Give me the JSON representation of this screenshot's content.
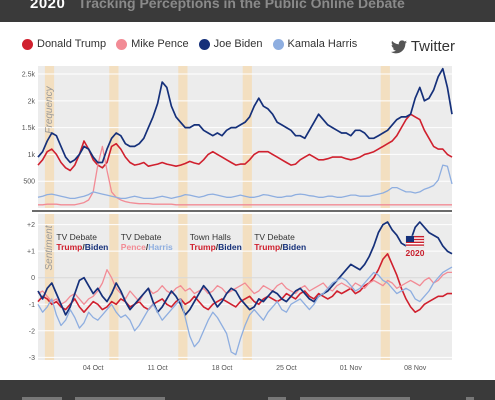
{
  "header": {
    "year": "2020",
    "title": "Tracking Perceptions in the Public Online Debate"
  },
  "legend": [
    {
      "name": "Donald Trump",
      "color": "#d0202e"
    },
    {
      "name": "Mike Pence",
      "color": "#f28b95"
    },
    {
      "name": "Joe Biden",
      "color": "#15307a"
    },
    {
      "name": "Kamala Harris",
      "color": "#8eaee0"
    }
  ],
  "platform": {
    "label": "Twitter",
    "icon": "twitter-bird-icon"
  },
  "colors": {
    "event_band": "#f3dfc0",
    "pane_bg": "#ececec",
    "divider": "#3a3a3a"
  },
  "chart_data": [
    {
      "type": "line",
      "ylabel": "Frequency",
      "yticks": [
        "500",
        "1k",
        "1.5k",
        "2k",
        "2.5k"
      ],
      "ytick_values": [
        500,
        1000,
        1500,
        2000,
        2500
      ],
      "ylim": [
        0,
        2650
      ],
      "x": [
        0,
        1,
        2,
        3,
        4,
        5,
        6,
        7,
        8,
        9,
        10,
        11,
        12,
        13,
        14,
        15,
        16,
        17,
        18,
        19,
        20,
        21,
        22,
        23,
        24,
        25,
        26,
        27,
        28,
        29,
        30,
        31,
        32,
        33,
        34,
        35,
        36,
        37,
        38,
        39,
        40,
        41,
        42,
        43,
        44,
        45,
        46,
        47,
        48,
        49,
        50,
        51,
        52,
        53,
        54,
        55,
        56,
        57,
        58,
        59,
        60,
        61,
        62,
        63,
        64,
        65,
        66,
        67,
        68,
        69,
        70,
        71,
        72,
        73,
        74,
        75,
        76,
        77,
        78,
        79,
        80,
        81,
        82,
        83,
        84,
        85,
        86,
        87,
        88,
        89,
        90
      ],
      "series": [
        {
          "name": "Donald Trump",
          "values": [
            800,
            900,
            1050,
            1100,
            1000,
            850,
            750,
            700,
            800,
            1000,
            1250,
            1100,
            900,
            800,
            750,
            850,
            1150,
            1200,
            1100,
            950,
            850,
            800,
            820,
            850,
            780,
            800,
            820,
            850,
            820,
            800,
            780,
            800,
            830,
            870,
            840,
            820,
            900,
            1000,
            1050,
            1000,
            950,
            900,
            850,
            800,
            820,
            820,
            900,
            1000,
            1050,
            1050,
            1050,
            1000,
            950,
            900,
            850,
            800,
            820,
            900,
            950,
            1000,
            950,
            900,
            900,
            920,
            950,
            950,
            950,
            920,
            900,
            920,
            950,
            1000,
            1020,
            1050,
            1100,
            1150,
            1200,
            1250,
            1350,
            1500,
            1650,
            1750,
            1700,
            1650,
            1450,
            1300,
            1150,
            1100,
            1100,
            1000,
            950
          ]
        },
        {
          "name": "Mike Pence",
          "values": [
            60,
            60,
            70,
            70,
            70,
            60,
            60,
            60,
            60,
            80,
            100,
            150,
            300,
            800,
            1150,
            700,
            300,
            200,
            150,
            120,
            100,
            90,
            80,
            80,
            80,
            70,
            70,
            70,
            70,
            70,
            60,
            60,
            60,
            60,
            60,
            60,
            60,
            60,
            60,
            60,
            60,
            60,
            60,
            60,
            60,
            60,
            60,
            60,
            60,
            60,
            60,
            60,
            60,
            60,
            60,
            60,
            60,
            60,
            60,
            60,
            60,
            60,
            60,
            60,
            60,
            60,
            60,
            60,
            60,
            60,
            60,
            60,
            60,
            60,
            60,
            60,
            60,
            60,
            60,
            60,
            60,
            60,
            60,
            60,
            60,
            60,
            60,
            60,
            60,
            60,
            60
          ]
        },
        {
          "name": "Joe Biden",
          "values": [
            950,
            1050,
            1250,
            1400,
            1350,
            1150,
            950,
            850,
            900,
            1000,
            1150,
            1100,
            950,
            850,
            850,
            1100,
            1300,
            1400,
            1350,
            1200,
            1150,
            1150,
            1200,
            1300,
            1500,
            1700,
            1950,
            2350,
            2250,
            1900,
            1700,
            1600,
            1500,
            1500,
            1550,
            1550,
            1450,
            1400,
            1350,
            1400,
            1350,
            1450,
            1500,
            1500,
            1550,
            1600,
            1700,
            1900,
            2050,
            1900,
            1850,
            1750,
            1600,
            1550,
            1500,
            1450,
            1350,
            1350,
            1300,
            1450,
            1600,
            1750,
            1650,
            1550,
            1500,
            1450,
            1400,
            1400,
            1350,
            1450,
            1450,
            1400,
            1300,
            1300,
            1350,
            1400,
            1450,
            1550,
            1650,
            1700,
            1700,
            1750,
            2050,
            2250,
            2000,
            2050,
            2200,
            2450,
            2600,
            2250,
            1750
          ]
        },
        {
          "name": "Kamala Harris",
          "values": [
            200,
            220,
            250,
            260,
            240,
            220,
            200,
            180,
            180,
            200,
            220,
            250,
            300,
            280,
            260,
            240,
            220,
            200,
            180,
            180,
            200,
            220,
            200,
            180,
            180,
            180,
            200,
            220,
            200,
            180,
            200,
            220,
            250,
            240,
            220,
            200,
            220,
            250,
            260,
            240,
            220,
            200,
            200,
            220,
            240,
            220,
            200,
            200,
            220,
            250,
            240,
            220,
            200,
            200,
            220,
            220,
            250,
            260,
            250,
            230,
            220,
            200,
            200,
            220,
            220,
            200,
            200,
            220,
            240,
            240,
            220,
            220,
            220,
            240,
            260,
            280,
            320,
            380,
            380,
            340,
            300,
            300,
            280,
            300,
            350,
            380,
            420,
            520,
            800,
            780,
            450
          ]
        }
      ]
    },
    {
      "type": "line",
      "ylabel": "Sentiment",
      "yticks": [
        "+2",
        "+1",
        "0",
        "-1",
        "-2",
        "-3"
      ],
      "ytick_values": [
        2,
        1,
        0,
        -1,
        -2,
        -3
      ],
      "ylim": [
        -3.1,
        2.4
      ],
      "xticks": [
        "04 Oct",
        "11 Oct",
        "18 Oct",
        "25 Oct",
        "01 Nov",
        "08 Nov"
      ],
      "xtick_positions": [
        12,
        26,
        40,
        54,
        68,
        82
      ],
      "event_bands": [
        [
          1.5,
          3.5
        ],
        [
          15.5,
          17.5
        ],
        [
          30.5,
          32.5
        ],
        [
          44.5,
          46.5
        ],
        [
          74.5,
          76.5
        ]
      ],
      "annotations": [
        {
          "title": "TV Debate",
          "a": "Trump",
          "b": "Biden",
          "x": 4
        },
        {
          "title": "TV Debate",
          "a": "Pence",
          "b": "Harris",
          "x": 18
        },
        {
          "title": "Town Halls",
          "a": "Trump",
          "b": "Biden",
          "x": 33
        },
        {
          "title": "TV Debate",
          "a": "Trump",
          "b": "Biden",
          "x": 47
        }
      ],
      "badge": "2020",
      "series": [
        {
          "name": "Donald Trump",
          "values": [
            -0.9,
            -0.7,
            -0.8,
            -1.0,
            -0.9,
            -1.1,
            -1.2,
            -1.0,
            -0.8,
            -1.1,
            -1.3,
            -1.1,
            -0.9,
            -1.0,
            -1.2,
            -1.1,
            -0.9,
            -1.0,
            -0.8,
            -0.9,
            -1.1,
            -1.0,
            -0.9,
            -1.1,
            -1.2,
            -1.0,
            -0.9,
            -0.8,
            -1.0,
            -1.1,
            -0.9,
            -0.8,
            -1.0,
            -0.9,
            -0.7,
            -0.9,
            -1.1,
            -1.2,
            -1.0,
            -0.9,
            -0.8,
            -0.9,
            -1.0,
            -1.1,
            -0.9,
            -0.8,
            -0.7,
            -0.9,
            -1.0,
            -0.8,
            -0.7,
            -0.8,
            -0.9,
            -0.8,
            -0.6,
            -0.7,
            -0.8,
            -0.6,
            -0.5,
            -0.7,
            -0.8,
            -0.6,
            -0.7,
            -0.8,
            -0.7,
            -0.5,
            -0.6,
            -0.5,
            -0.4,
            -0.6,
            -0.5,
            -0.3,
            -0.2,
            0.0,
            0.3,
            0.7,
            0.9,
            0.5,
            0.1,
            -0.4,
            -0.8,
            -1.1,
            -1.3,
            -1.2,
            -1.0,
            -0.9,
            -0.8,
            -0.7,
            -0.7,
            -0.6,
            -0.6
          ]
        },
        {
          "name": "Mike Pence",
          "values": [
            -0.6,
            -0.5,
            -0.7,
            -0.9,
            -0.8,
            -1.0,
            -0.9,
            -0.7,
            -0.6,
            -0.8,
            -1.0,
            -0.8,
            -0.7,
            -0.5,
            -0.2,
            0.3,
            0.0,
            -0.4,
            -0.6,
            -0.8,
            -0.5,
            -0.7,
            -0.9,
            -0.6,
            -0.4,
            -0.6,
            -0.5,
            -0.3,
            -0.5,
            -0.6,
            -0.4,
            -0.3,
            -0.5,
            -0.4,
            -0.6,
            -0.5,
            -0.4,
            -0.6,
            -0.5,
            -0.3,
            -0.4,
            -0.6,
            -0.5,
            -0.4,
            -0.3,
            -0.2,
            -0.4,
            -0.6,
            -0.5,
            -0.3,
            -0.4,
            -0.5,
            -0.3,
            -0.2,
            -0.4,
            -0.5,
            -0.6,
            -0.4,
            -0.3,
            -0.5,
            -0.4,
            -0.3,
            -0.2,
            -0.4,
            -0.5,
            -0.3,
            -0.2,
            -0.3,
            -0.4,
            -0.2,
            -0.3,
            -0.4,
            -0.2,
            -0.1,
            -0.2,
            -0.3,
            -0.1,
            -0.2,
            -0.4,
            -0.3,
            -0.2,
            -0.1,
            -0.2,
            -0.3,
            -0.1,
            0.0,
            -0.2,
            -0.1,
            0.1,
            0.2,
            0.2
          ]
        },
        {
          "name": "Joe Biden",
          "values": [
            -0.5,
            -0.8,
            -0.4,
            -0.2,
            -0.6,
            -1.0,
            -1.4,
            -1.1,
            -0.6,
            -0.1,
            0.0,
            -0.3,
            -0.6,
            -0.4,
            -0.7,
            -0.9,
            -0.6,
            -0.2,
            -0.5,
            -0.9,
            -1.2,
            -1.0,
            -0.8,
            -0.6,
            -0.4,
            -0.9,
            -1.3,
            -1.1,
            -0.8,
            -0.5,
            -0.7,
            -1.0,
            -1.4,
            -1.2,
            -0.9,
            -0.6,
            -0.3,
            -0.5,
            -0.8,
            -1.1,
            -0.9,
            -0.6,
            -0.4,
            -0.5,
            -0.8,
            -1.0,
            -1.2,
            -1.1,
            -0.8,
            -0.9,
            -0.7,
            -0.5,
            -0.6,
            -0.8,
            -0.9,
            -0.7,
            -0.5,
            -0.4,
            -0.6,
            -0.8,
            -0.9,
            -0.7,
            -0.6,
            -0.5,
            -0.3,
            -0.1,
            0.1,
            0.3,
            0.5,
            0.4,
            0.3,
            0.5,
            0.8,
            1.2,
            1.7,
            2.0,
            2.1,
            1.8,
            1.6,
            1.3,
            1.2,
            1.4,
            1.9,
            2.1,
            1.9,
            1.7,
            1.6,
            1.5,
            1.2,
            1.0,
            0.9
          ]
        },
        {
          "name": "Kamala Harris",
          "values": [
            -1.0,
            -1.3,
            -1.1,
            -0.8,
            -1.4,
            -1.8,
            -1.6,
            -1.2,
            -1.5,
            -1.9,
            -1.7,
            -1.3,
            -1.5,
            -1.6,
            -1.4,
            -1.2,
            -1.0,
            -1.3,
            -1.5,
            -1.4,
            -1.6,
            -2.0,
            -1.8,
            -1.5,
            -1.2,
            -1.0,
            -1.3,
            -1.6,
            -1.4,
            -1.2,
            -1.0,
            -0.8,
            -1.5,
            -2.2,
            -2.6,
            -2.4,
            -2.0,
            -1.6,
            -1.3,
            -1.5,
            -1.8,
            -2.1,
            -2.8,
            -2.9,
            -2.3,
            -1.8,
            -1.4,
            -1.2,
            -1.4,
            -1.6,
            -1.3,
            -1.1,
            -0.9,
            -1.2,
            -1.3,
            -1.0,
            -0.9,
            -0.8,
            -1.0,
            -1.2,
            -1.0,
            -0.7,
            -0.6,
            -0.4,
            -0.2,
            -0.1,
            0.0,
            -0.1,
            -0.3,
            -0.5,
            -0.4,
            -0.2,
            0.0,
            0.2,
            0.1,
            -0.1,
            -0.2,
            -0.4,
            -0.6,
            -0.5,
            -0.4,
            -0.5,
            -0.8,
            -0.9,
            -0.7,
            -0.5,
            -0.2,
            0.0,
            0.2,
            0.3,
            0.4
          ]
        }
      ]
    }
  ]
}
